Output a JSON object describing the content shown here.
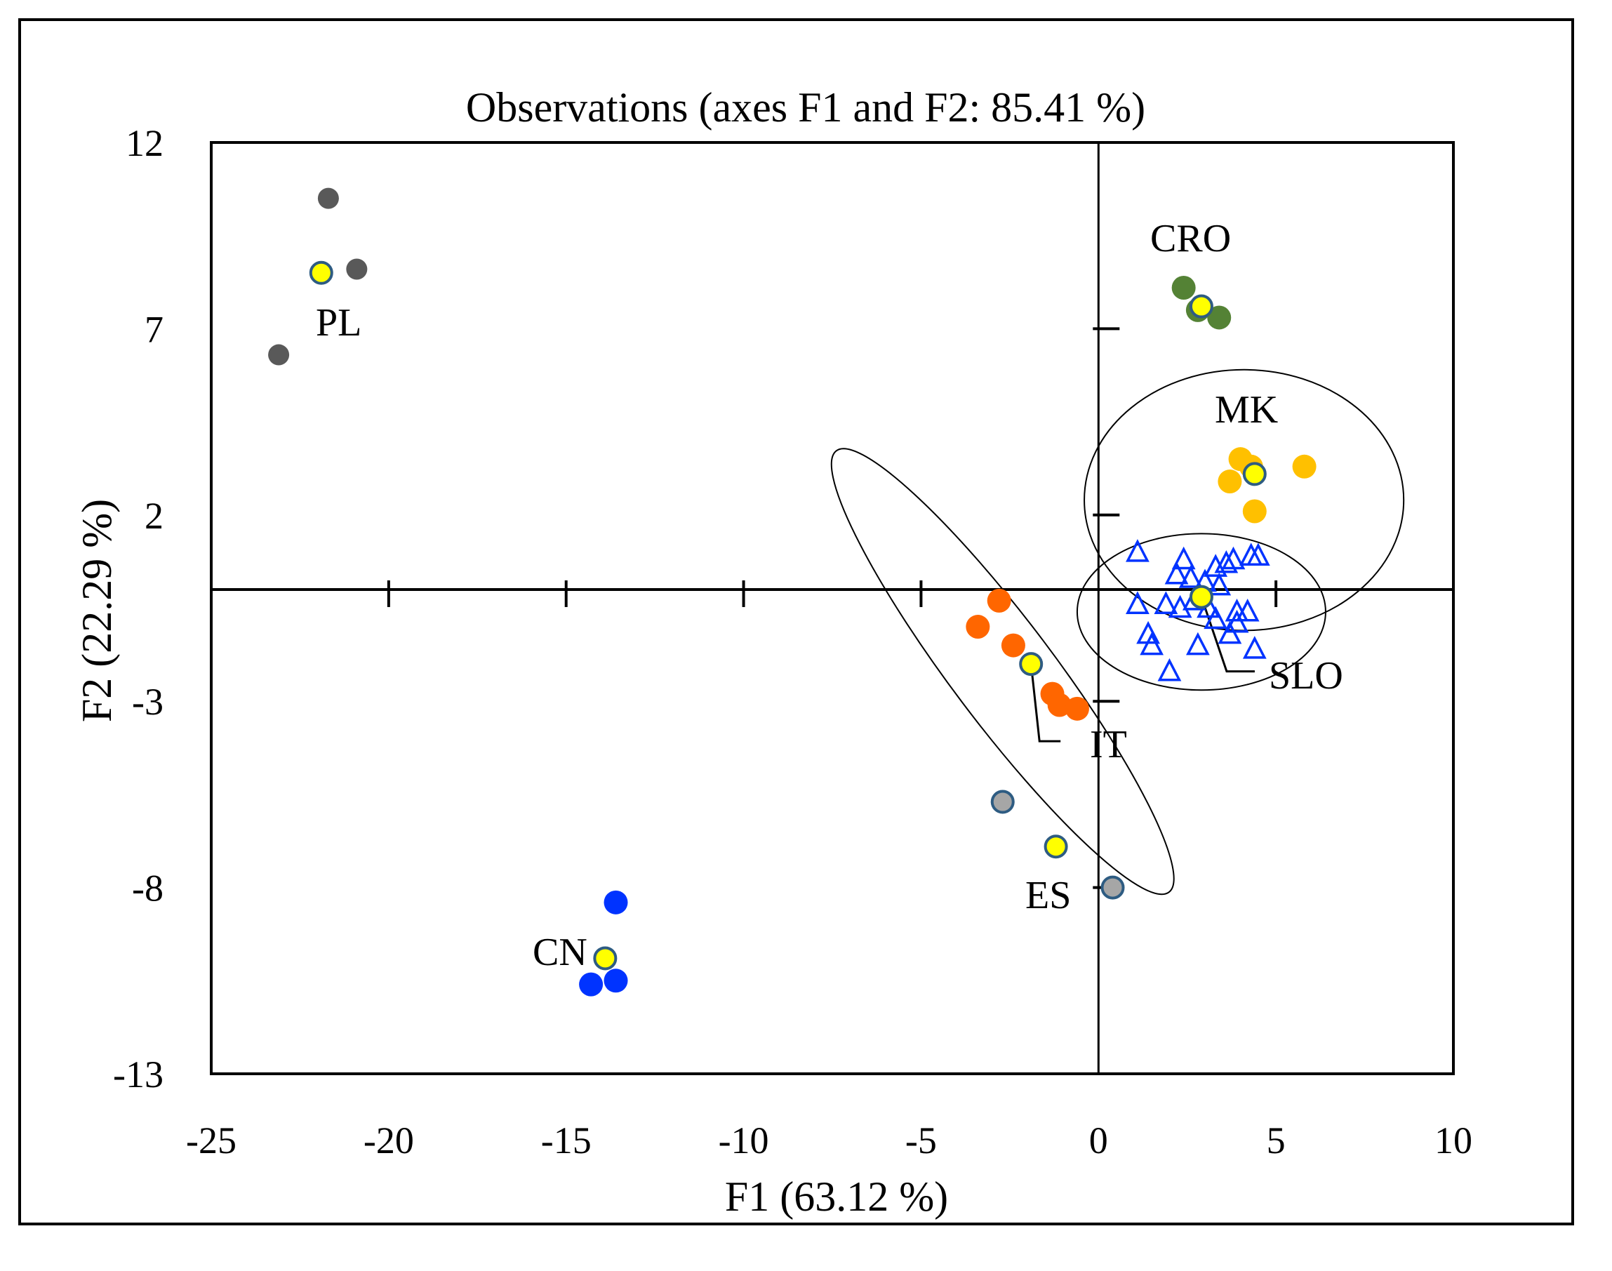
{
  "chart_data": {
    "type": "scatter",
    "title": "Observations (axes F1 and F2: 85.41 %)",
    "xlabel": "F1 (63.12 %)",
    "ylabel": "F2 (22.29 %)",
    "xlim": [
      -25,
      10
    ],
    "ylim": [
      -13,
      12
    ],
    "xticks": [
      -25,
      -20,
      -15,
      -10,
      -5,
      0,
      5,
      10
    ],
    "yticks": [
      12,
      7,
      2,
      -3,
      -8,
      -13
    ],
    "xtick_labels": [
      "-25",
      "-20",
      "-15",
      "-10",
      "-5",
      "0",
      "5",
      "10"
    ],
    "ytick_labels": [
      "12",
      "7",
      "2",
      "-3",
      "-8",
      "-13"
    ],
    "annotations": [
      {
        "key": "pl",
        "text": "PL"
      },
      {
        "key": "cro",
        "text": "CRO"
      },
      {
        "key": "mk",
        "text": "MK"
      },
      {
        "key": "slo",
        "text": "SLO"
      },
      {
        "key": "it",
        "text": "IT"
      },
      {
        "key": "es",
        "text": "ES"
      },
      {
        "key": "cn",
        "text": "CN"
      }
    ],
    "series": [
      {
        "name": "PL",
        "marker": "circle",
        "color": "#595959",
        "points": [
          [
            -21.7,
            10.5
          ],
          [
            -20.9,
            8.6
          ],
          [
            -23.1,
            6.3
          ]
        ]
      },
      {
        "name": "PL centroid",
        "marker": "centroid",
        "color": "#ffff00",
        "points": [
          [
            -21.9,
            8.5
          ]
        ]
      },
      {
        "name": "CRO",
        "marker": "circle",
        "color": "#548235",
        "points": [
          [
            2.4,
            8.1
          ],
          [
            2.8,
            7.5
          ],
          [
            3.4,
            7.3
          ]
        ]
      },
      {
        "name": "CRO centroid",
        "marker": "centroid",
        "color": "#ffff00",
        "points": [
          [
            2.9,
            7.6
          ]
        ]
      },
      {
        "name": "MK",
        "marker": "circle",
        "color": "#ffc000",
        "points": [
          [
            4.0,
            3.5
          ],
          [
            4.3,
            3.3
          ],
          [
            5.8,
            3.3
          ],
          [
            3.7,
            2.9
          ],
          [
            4.4,
            2.1
          ]
        ]
      },
      {
        "name": "MK centroid",
        "marker": "centroid",
        "color": "#ffff00",
        "points": [
          [
            4.4,
            3.1
          ]
        ]
      },
      {
        "name": "SLO",
        "marker": "triangle",
        "color": "#0033ff",
        "points": [
          [
            1.1,
            1.0
          ],
          [
            2.4,
            0.8
          ],
          [
            3.3,
            0.6
          ],
          [
            3.6,
            0.7
          ],
          [
            3.8,
            0.8
          ],
          [
            4.3,
            0.9
          ],
          [
            4.5,
            0.9
          ],
          [
            2.2,
            0.4
          ],
          [
            2.6,
            0.3
          ],
          [
            3.0,
            0.2
          ],
          [
            3.4,
            0.1
          ],
          [
            1.1,
            -0.4
          ],
          [
            1.9,
            -0.4
          ],
          [
            2.3,
            -0.5
          ],
          [
            2.7,
            -0.3
          ],
          [
            3.1,
            -0.5
          ],
          [
            3.3,
            -0.8
          ],
          [
            3.9,
            -0.6
          ],
          [
            4.2,
            -0.6
          ],
          [
            3.9,
            -0.9
          ],
          [
            1.4,
            -1.2
          ],
          [
            1.5,
            -1.5
          ],
          [
            3.7,
            -1.2
          ],
          [
            2.8,
            -1.5
          ],
          [
            4.4,
            -1.6
          ],
          [
            2.0,
            -2.2
          ]
        ]
      },
      {
        "name": "SLO centroid",
        "marker": "centroid",
        "color": "#ffff00",
        "points": [
          [
            2.9,
            -0.2
          ]
        ]
      },
      {
        "name": "IT",
        "marker": "circle",
        "color": "#ff6600",
        "points": [
          [
            -2.8,
            -0.3
          ],
          [
            -3.4,
            -1.0
          ],
          [
            -2.4,
            -1.5
          ],
          [
            -1.3,
            -2.8
          ],
          [
            -1.1,
            -3.1
          ],
          [
            -0.6,
            -3.2
          ]
        ]
      },
      {
        "name": "IT centroid",
        "marker": "centroid",
        "color": "#ffff00",
        "points": [
          [
            -1.9,
            -2.0
          ]
        ]
      },
      {
        "name": "ES",
        "marker": "circle",
        "color": "#a6a6a6",
        "points": [
          [
            -2.7,
            -5.7
          ],
          [
            0.4,
            -8.0
          ]
        ]
      },
      {
        "name": "ES centroid",
        "marker": "centroid",
        "color": "#ffff00",
        "points": [
          [
            -1.2,
            -6.9
          ]
        ]
      },
      {
        "name": "CN",
        "marker": "circle",
        "color": "#0033ff",
        "points": [
          [
            -13.6,
            -8.4
          ],
          [
            -14.3,
            -10.6
          ],
          [
            -13.6,
            -10.5
          ]
        ]
      },
      {
        "name": "CN centroid",
        "marker": "centroid",
        "color": "#ffff00",
        "points": [
          [
            -13.9,
            -9.9
          ]
        ]
      }
    ],
    "ellipses": [
      {
        "name": "MK confidence",
        "cx": 4.1,
        "cy": 2.4,
        "rx": 4.5,
        "ry": 3.5,
        "angle": 0
      },
      {
        "name": "SLO confidence",
        "cx": 2.9,
        "cy": -0.6,
        "rx": 3.5,
        "ry": 2.1,
        "angle": 0
      },
      {
        "name": "IT confidence",
        "cx": -2.7,
        "cy": -2.2,
        "rx": 7.6,
        "ry": 1.4,
        "angle": -53
      }
    ]
  }
}
